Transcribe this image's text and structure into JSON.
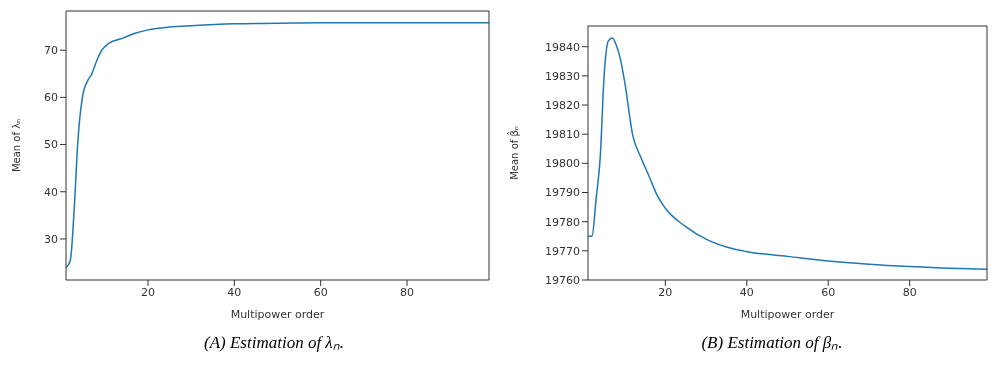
{
  "chart_data": [
    {
      "type": "line",
      "title": "(A) Estimation of λₙ.",
      "xlabel": "Multipower order",
      "ylabel": "Mean of λₙ",
      "xlim": [
        1,
        99
      ],
      "ylim": [
        21.3,
        78.3
      ],
      "xticks": [
        20,
        40,
        60,
        80
      ],
      "yticks": [
        30,
        40,
        50,
        60,
        70
      ],
      "grid": false,
      "legend": false,
      "marker": "none",
      "line_style": "solid",
      "series": [
        {
          "color": "#1f77b4",
          "x": [
            1,
            2,
            3,
            3.7,
            4.8,
            6,
            7,
            8,
            9.3,
            11,
            14,
            17,
            20,
            25,
            30,
            40,
            50,
            60,
            80,
            99
          ],
          "values": [
            23.9,
            25.5,
            38,
            50,
            60,
            63.5,
            65,
            67.5,
            70,
            71.5,
            72.5,
            73.6,
            74.3,
            74.9,
            75.2,
            75.6,
            75.7,
            75.8,
            75.8,
            75.8
          ]
        }
      ]
    },
    {
      "type": "line",
      "title": "(B) Estimation of βₙ.",
      "xlabel": "Multipower order",
      "ylabel": "Mean of β̂ₙ",
      "xlim": [
        1,
        99
      ],
      "ylim": [
        19760,
        19847.1
      ],
      "xticks": [
        20,
        40,
        60,
        80
      ],
      "yticks": [
        19760,
        19770,
        19780,
        19790,
        19800,
        19810,
        19820,
        19830,
        19840
      ],
      "grid": false,
      "legend": false,
      "marker": "none",
      "line_style": "solid",
      "series": [
        {
          "color": "#1f77b4",
          "x": [
            1,
            2,
            3,
            4,
            5,
            6,
            7,
            8,
            9,
            10,
            12,
            14,
            16,
            18,
            20,
            25,
            30,
            35,
            40,
            50,
            60,
            70,
            80,
            90,
            99
          ],
          "values": [
            19774.9,
            19775.1,
            19788,
            19802,
            19831,
            19842,
            19843,
            19840.3,
            19835.5,
            19828,
            19809.6,
            19802,
            19795.6,
            19789,
            19784.6,
            19778.3,
            19774,
            19771.3,
            19769.7,
            19768.1,
            19766.5,
            19765.4,
            19764.6,
            19764,
            19763.7
          ]
        }
      ]
    }
  ]
}
